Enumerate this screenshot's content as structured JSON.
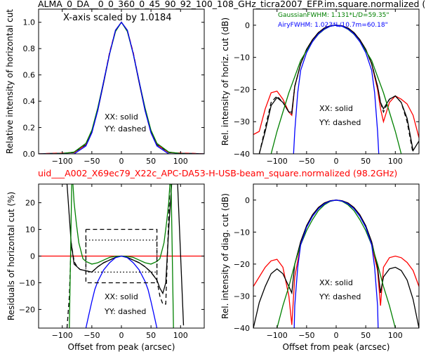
{
  "header": {
    "top_title": "ALMA_0_DA__0_0_360_0_45_90_92_100_108_GHz_ticra2007_EFP.im.square.normalized (",
    "mid_title": "uid___A002_X69ec79_X22c_APC-DA53-H-USB-beam_square.normalized (98.2GHz)"
  },
  "colors": {
    "red": "#ff0000",
    "black": "#000000",
    "green": "#008000",
    "blue": "#0000ff"
  },
  "chart_data": [
    {
      "id": "p1",
      "type": "line",
      "ylabel": "Relative intensity of horizontal cut",
      "xlabel": "",
      "xlim": [
        -140,
        140
      ],
      "ylim": [
        0,
        1.1
      ],
      "xticks": [
        -100,
        -50,
        0,
        50,
        100
      ],
      "yticks": [
        0.0,
        0.2,
        0.4,
        0.6,
        0.8,
        1.0
      ],
      "ytick_labels": [
        "0.0",
        "0.2",
        "0.4",
        "0.6",
        "0.8",
        "1.0"
      ],
      "annotation": "X-axis scaled by 1.0184",
      "legend_text": [
        "XX: solid",
        "YY: dashed"
      ],
      "series": [
        {
          "color": "black",
          "dash": false,
          "x": [
            -140,
            -120,
            -100,
            -80,
            -60,
            -50,
            -40,
            -30,
            -20,
            -10,
            0,
            10,
            20,
            30,
            40,
            50,
            60,
            80,
            100,
            120,
            140
          ],
          "y": [
            0,
            0.003,
            0.005,
            0.01,
            0.07,
            0.17,
            0.33,
            0.54,
            0.76,
            0.94,
            1.0,
            0.94,
            0.76,
            0.54,
            0.33,
            0.17,
            0.07,
            0.01,
            0.005,
            0.003,
            0
          ]
        },
        {
          "color": "red",
          "dash": true,
          "x": [
            -140,
            -120,
            -100,
            -80,
            -60,
            -50,
            -40,
            -30,
            -20,
            -10,
            0,
            10,
            20,
            30,
            40,
            50,
            60,
            80,
            100,
            120,
            140
          ],
          "y": [
            0,
            0.004,
            0.006,
            0.01,
            0.07,
            0.16,
            0.33,
            0.55,
            0.77,
            0.94,
            1.0,
            0.94,
            0.77,
            0.55,
            0.33,
            0.16,
            0.07,
            0.01,
            0.006,
            0.004,
            0
          ]
        },
        {
          "color": "green",
          "dash": false,
          "x": [
            -140,
            -120,
            -100,
            -80,
            -60,
            -50,
            -40,
            -30,
            -20,
            -10,
            0,
            10,
            20,
            30,
            40,
            50,
            60,
            80,
            100,
            120,
            140
          ],
          "y": [
            0,
            0.0002,
            0.002,
            0.014,
            0.08,
            0.18,
            0.35,
            0.55,
            0.76,
            0.93,
            1.0,
            0.93,
            0.76,
            0.55,
            0.35,
            0.18,
            0.08,
            0.014,
            0.002,
            0.0002,
            0
          ]
        },
        {
          "color": "blue",
          "dash": false,
          "x": [
            -140,
            -100,
            -80,
            -60,
            -50,
            -40,
            -30,
            -20,
            -10,
            0,
            10,
            20,
            30,
            40,
            50,
            60,
            80,
            100,
            140
          ],
          "y": [
            0,
            0,
            0,
            0.06,
            0.16,
            0.33,
            0.55,
            0.76,
            0.94,
            1.0,
            0.94,
            0.76,
            0.55,
            0.33,
            0.16,
            0.06,
            0,
            0,
            0
          ]
        }
      ]
    },
    {
      "id": "p2",
      "type": "line",
      "ylabel": "Rel. intensity of horiz. cut (dB)",
      "xlabel": "",
      "xlim": [
        -140,
        140
      ],
      "ylim": [
        -40,
        5
      ],
      "xticks": [
        -100,
        -50,
        0,
        50,
        100
      ],
      "yticks": [
        0,
        -10,
        -20,
        -30,
        -40
      ],
      "ytick_labels": [
        "0",
        "−10",
        "−20",
        "−30",
        "−40"
      ],
      "legend_text": [
        "XX: solid",
        "YY: dashed"
      ],
      "fwhm_gaussian": "GaussianFWHM: 1.131*L/D=59.35\"",
      "fwhm_airy": "AiryFWHM: 1.023*L/10.7m=60.18\"",
      "series": [
        {
          "color": "red",
          "dash": false,
          "x": [
            -140,
            -130,
            -120,
            -110,
            -100,
            -90,
            -80,
            -75,
            -70,
            -60,
            -50,
            -40,
            -30,
            -20,
            -10,
            0,
            10,
            20,
            30,
            40,
            50,
            60,
            70,
            75,
            80,
            90,
            100,
            110,
            120,
            130,
            140
          ],
          "y": [
            -34,
            -33,
            -26,
            -21,
            -20.5,
            -23,
            -27,
            -28,
            -19,
            -12,
            -7.5,
            -4.5,
            -2.3,
            -0.9,
            -0.2,
            0,
            -0.2,
            -0.9,
            -2.3,
            -4.5,
            -7.5,
            -12,
            -20,
            -26,
            -30,
            -24,
            -22,
            -23,
            -24.5,
            -28,
            -35
          ]
        },
        {
          "color": "black",
          "dash": false,
          "x": [
            -140,
            -130,
            -120,
            -110,
            -100,
            -90,
            -80,
            -75,
            -70,
            -60,
            -50,
            -40,
            -30,
            -20,
            -10,
            0,
            10,
            20,
            30,
            40,
            50,
            60,
            70,
            75,
            80,
            90,
            100,
            110,
            120,
            130,
            140
          ],
          "y": [
            -40,
            -40,
            -33,
            -25,
            -22.5,
            -24,
            -27,
            -27,
            -19,
            -12,
            -7.5,
            -4.5,
            -2.3,
            -0.9,
            -0.2,
            0,
            -0.2,
            -0.9,
            -2.3,
            -4.5,
            -7.5,
            -12,
            -19,
            -24,
            -26,
            -23,
            -22,
            -24,
            -29,
            -39,
            -36
          ]
        },
        {
          "color": "black",
          "dash": true,
          "x": [
            -130,
            -120,
            -110,
            -100,
            -90,
            -80,
            -75,
            -70,
            -60,
            -50,
            -40,
            -30,
            -20,
            -10,
            0,
            10,
            20,
            30,
            40,
            50,
            60,
            70,
            75,
            80,
            90,
            100,
            110,
            120,
            130
          ],
          "y": [
            -40,
            -32,
            -24,
            -22,
            -24,
            -27,
            -27.5,
            -19,
            -12,
            -7.5,
            -4.5,
            -2.3,
            -0.9,
            -0.2,
            0,
            -0.2,
            -0.9,
            -2.3,
            -4.5,
            -7.5,
            -12,
            -19,
            -24,
            -27,
            -23,
            -22,
            -24,
            -30,
            -40
          ]
        },
        {
          "color": "green",
          "dash": false,
          "x": [
            -110,
            -100,
            -90,
            -80,
            -70,
            -60,
            -50,
            -40,
            -30,
            -20,
            -10,
            0,
            10,
            20,
            30,
            40,
            50,
            60,
            70,
            80,
            90,
            100,
            110
          ],
          "y": [
            -40,
            -33,
            -27,
            -21,
            -16,
            -11,
            -7.9,
            -5.1,
            -2.8,
            -1.3,
            -0.3,
            0,
            -0.3,
            -1.3,
            -2.8,
            -5.1,
            -7.9,
            -11,
            -16,
            -21,
            -27,
            -33,
            -40
          ]
        },
        {
          "color": "blue",
          "dash": false,
          "x": [
            -72,
            -70,
            -65,
            -60,
            -50,
            -40,
            -30,
            -20,
            -10,
            0,
            10,
            20,
            30,
            40,
            50,
            60,
            65,
            70,
            72
          ],
          "y": [
            -40,
            -33,
            -21,
            -14,
            -8.5,
            -5.1,
            -2.7,
            -1.2,
            -0.3,
            0,
            -0.3,
            -1.2,
            -2.7,
            -5.1,
            -8.5,
            -14,
            -21,
            -33,
            -40
          ]
        }
      ]
    },
    {
      "id": "p3",
      "type": "line",
      "ylabel": "Residuals of horizontal cut (%)",
      "xlabel": "Offset from peak (arcsec)",
      "xlim": [
        -140,
        140
      ],
      "ylim": [
        -27,
        27
      ],
      "xticks": [
        -100,
        -50,
        0,
        50,
        100
      ],
      "yticks": [
        20,
        10,
        0,
        -10,
        -20
      ],
      "ytick_labels": [
        "20",
        "10",
        "0",
        "−10",
        "−20"
      ],
      "legend_text": [
        "XX: solid",
        "YY: dashed"
      ],
      "series": [
        {
          "color": "red",
          "dash": false,
          "x": [
            -140,
            140
          ],
          "y": [
            0,
            0
          ]
        },
        {
          "color": "black",
          "dash": false,
          "x": [
            -100,
            -92,
            -85,
            -80,
            -75,
            -70,
            -60,
            -50,
            -40,
            -30,
            -20,
            -10,
            0,
            10,
            20,
            30,
            40,
            50,
            60,
            65,
            70,
            75,
            80,
            85,
            95,
            105
          ],
          "y": [
            27,
            27,
            5,
            -3,
            -4,
            -5,
            -5.5,
            -6,
            -4,
            -2.5,
            -1.5,
            -0.5,
            0,
            -0.5,
            -1.5,
            -2.5,
            -4,
            -6,
            -9,
            -12,
            -14,
            -10,
            10,
            27,
            27,
            -26
          ]
        },
        {
          "color": "black",
          "dash": true,
          "x": [
            -92,
            -88,
            -85,
            -80,
            -75,
            -70,
            -60,
            -50,
            -40,
            -30,
            -20,
            -10,
            0,
            10,
            20,
            30,
            40,
            50,
            60,
            65,
            70,
            75,
            80,
            82,
            85
          ],
          "y": [
            -27,
            -15,
            5,
            -2,
            -4,
            -5,
            -5.5,
            -6,
            -4,
            -2.5,
            -1.5,
            -0.5,
            0,
            -0.5,
            -1.5,
            -2.5,
            -4,
            -6,
            -9,
            -15,
            -18,
            -18,
            15,
            27,
            27
          ]
        },
        {
          "color": "green",
          "dash": false,
          "x": [
            -88,
            -84,
            -82,
            -80,
            -76,
            -72,
            -65,
            -60,
            -50,
            -40,
            -30,
            -20,
            -10,
            0,
            10,
            20,
            30,
            40,
            50,
            60,
            65,
            72,
            76,
            80,
            82,
            84,
            88
          ],
          "y": [
            -27,
            27,
            27,
            20,
            12,
            5,
            -1,
            -2,
            -3,
            -2.5,
            -1.5,
            -0.5,
            -0.1,
            0,
            -0.1,
            -0.5,
            -1.5,
            -2.5,
            -3,
            -2,
            -1,
            5,
            12,
            20,
            27,
            27,
            -27
          ]
        },
        {
          "color": "blue",
          "dash": false,
          "x": [
            -60,
            -55,
            -50,
            -45,
            -40,
            -30,
            -20,
            -10,
            0,
            10,
            20,
            30,
            40,
            45,
            50,
            55,
            60
          ],
          "y": [
            -27,
            -22,
            -17,
            -12.5,
            -9.5,
            -5.2,
            -2.5,
            -0.6,
            0,
            -0.6,
            -2.5,
            -5.2,
            -9.5,
            -12.5,
            -17,
            -22,
            -27
          ]
        },
        {
          "color": "black",
          "dash": true,
          "x": [
            -60,
            60,
            60,
            -60,
            -60
          ],
          "y": [
            10,
            10,
            -10,
            -10,
            10
          ]
        },
        {
          "color": "black",
          "dash": "dot",
          "x": [
            -60,
            60,
            60,
            -60,
            -60
          ],
          "y": [
            6,
            6,
            -6,
            -6,
            6
          ]
        }
      ]
    },
    {
      "id": "p4",
      "type": "line",
      "ylabel": "Rel. intensity of diag. cut (dB)",
      "xlabel": "Offset from peak (arcsec)",
      "xlim": [
        -140,
        140
      ],
      "ylim": [
        -40,
        5
      ],
      "xticks": [
        -100,
        -50,
        0,
        50,
        100
      ],
      "yticks": [
        0,
        -10,
        -20,
        -30,
        -40
      ],
      "ytick_labels": [
        "0",
        "−10",
        "−20",
        "−30",
        "−40"
      ],
      "legend_text": [
        "XX: solid",
        "YY: dashed"
      ],
      "series": [
        {
          "color": "red",
          "dash": false,
          "x": [
            -140,
            -130,
            -120,
            -110,
            -100,
            -90,
            -80,
            -75,
            -70,
            -60,
            -50,
            -40,
            -30,
            -20,
            -10,
            0,
            10,
            20,
            30,
            40,
            50,
            60,
            70,
            75,
            80,
            90,
            100,
            110,
            120,
            130,
            140
          ],
          "y": [
            -27,
            -24,
            -21,
            -19,
            -18.5,
            -21,
            -30,
            -39,
            -24,
            -14,
            -8,
            -4.6,
            -2.3,
            -0.9,
            -0.2,
            0,
            -0.2,
            -0.9,
            -2.3,
            -4.6,
            -8,
            -14,
            -22,
            -33,
            -21,
            -18,
            -17.5,
            -18,
            -19.5,
            -22,
            -27
          ]
        },
        {
          "color": "black",
          "dash": false,
          "x": [
            -140,
            -130,
            -120,
            -110,
            -100,
            -90,
            -80,
            -75,
            -70,
            -60,
            -50,
            -40,
            -30,
            -20,
            -10,
            0,
            10,
            20,
            30,
            40,
            50,
            60,
            70,
            75,
            80,
            90,
            100,
            110,
            120,
            130,
            140
          ],
          "y": [
            -40,
            -32,
            -27,
            -23,
            -21.5,
            -23,
            -27,
            -29,
            -20,
            -13,
            -8,
            -4.6,
            -2.3,
            -0.9,
            -0.2,
            0,
            -0.2,
            -0.9,
            -2.3,
            -4.6,
            -8,
            -13,
            -21,
            -29,
            -24,
            -21.5,
            -21,
            -22,
            -25,
            -31,
            -40
          ]
        },
        {
          "color": "green",
          "dash": false,
          "x": [
            -100,
            -90,
            -80,
            -70,
            -60,
            -50,
            -40,
            -30,
            -20,
            -10,
            0,
            10,
            20,
            30,
            40,
            50,
            60,
            70,
            80,
            90,
            100
          ],
          "y": [
            -40,
            -33,
            -27,
            -20,
            -14,
            -9.5,
            -6.1,
            -3.3,
            -1.5,
            -0.4,
            0,
            -0.4,
            -1.5,
            -3.3,
            -6.1,
            -9.5,
            -14,
            -20,
            -27,
            -33,
            -40
          ]
        },
        {
          "color": "blue",
          "dash": false,
          "x": [
            -71,
            -70,
            -65,
            -60,
            -50,
            -40,
            -30,
            -20,
            -10,
            0,
            10,
            20,
            30,
            40,
            50,
            60,
            65,
            70,
            71
          ],
          "y": [
            -40,
            -33,
            -21,
            -14,
            -8.5,
            -5.1,
            -2.7,
            -1.2,
            -0.3,
            0,
            -0.3,
            -1.2,
            -2.7,
            -5.1,
            -8.5,
            -14,
            -21,
            -33,
            -40
          ]
        }
      ]
    }
  ]
}
